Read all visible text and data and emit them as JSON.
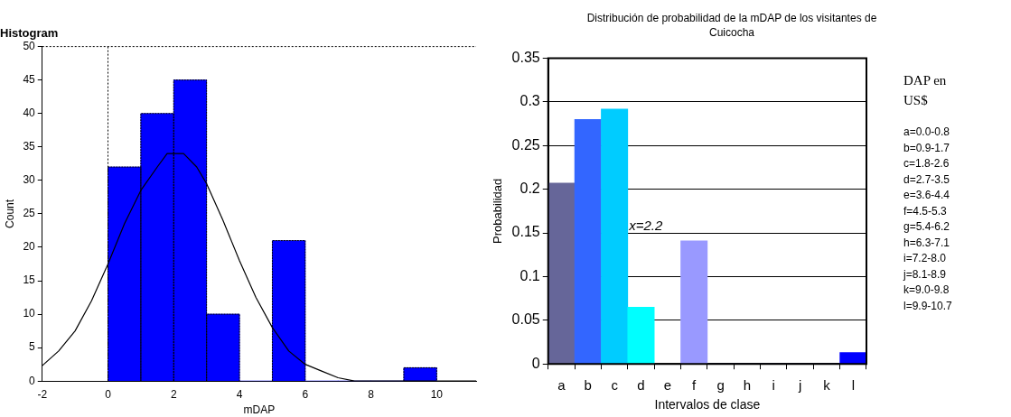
{
  "chart_data": [
    {
      "type": "histogram",
      "title": "Histogram",
      "xlabel": "mDAP",
      "ylabel": "Count",
      "bins": [
        0,
        1,
        2,
        3,
        4,
        5,
        6,
        7,
        8,
        9,
        10
      ],
      "values": [
        32,
        40,
        45,
        10,
        0,
        21,
        0,
        0,
        0,
        2
      ],
      "color": "#0000ff",
      "series": [
        {
          "type": "line",
          "color": "#000000",
          "x": [
            -2,
            -1.5,
            -1,
            -0.5,
            0,
            0.5,
            1,
            1.5,
            1.8,
            2.3,
            2.7,
            3,
            3.5,
            4,
            4.5,
            5,
            5.5,
            6,
            6.5,
            7,
            7.5,
            8,
            9,
            10,
            11.2
          ],
          "values": [
            2.3,
            4.5,
            7.5,
            12,
            17.5,
            23.5,
            28.5,
            32,
            34,
            34,
            32,
            29.5,
            24,
            18,
            12.5,
            8,
            4.5,
            2.5,
            1.5,
            0.5,
            0,
            0,
            0,
            0,
            0
          ]
        }
      ],
      "xlim": [
        -2,
        11.2
      ],
      "xticks": [
        -2,
        0,
        2,
        4,
        6,
        8,
        10
      ],
      "ylim": [
        0,
        50
      ],
      "yticks": [
        0,
        5,
        10,
        15,
        20,
        25,
        30,
        35,
        40,
        45,
        50
      ],
      "ref_lines": [
        {
          "axis": "x",
          "value": 0,
          "line_style": "dotted"
        }
      ]
    },
    {
      "type": "bar",
      "title": "Distribución de probabilidad de la mDAP de los visitantes de Cuicocha",
      "xlabel": "Intervalos de clase",
      "ylabel": "Probabilidad",
      "categories": [
        "a",
        "b",
        "c",
        "d",
        "e",
        "f",
        "g",
        "h",
        "i",
        "j",
        "k",
        "l"
      ],
      "values": [
        0.207,
        0.28,
        0.292,
        0.065,
        0,
        0.141,
        0,
        0,
        0,
        0,
        0,
        0.013
      ],
      "colors": [
        "#666699",
        "#3366ff",
        "#00ccff",
        "#00ffff",
        "#ffffff",
        "#9999ff",
        "#9999ff",
        "#9999ff",
        "#9999ff",
        "#9999ff",
        "#9999ff",
        "#0000ff"
      ],
      "ylim": [
        0,
        0.35
      ],
      "yticks": [
        0,
        0.05,
        0.1,
        0.15,
        0.2,
        0.25,
        0.3,
        0.35
      ],
      "grid": "y",
      "annotations": [
        "x=2.2",
        "DAP en US$",
        "a=0.0-0.8",
        "b=0.9-1.7",
        "c=1.8-2.6",
        "d=2.7-3.5",
        "e=3.6-4.4",
        "f=4.5-5.3",
        "g=5.4-6.2",
        "h=6.3-7.1",
        "i=7.2-8.0",
        "j=8.1-8.9",
        "k=9.0-9.8",
        "l=9.9-10.7"
      ]
    }
  ]
}
